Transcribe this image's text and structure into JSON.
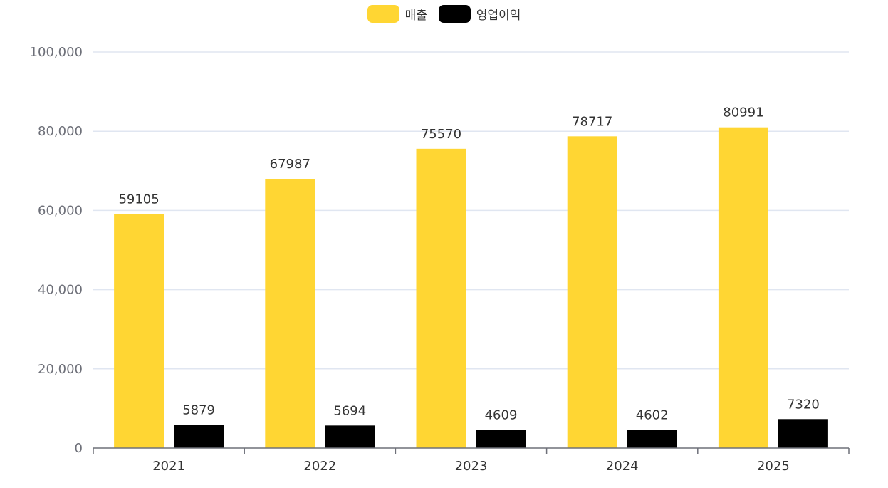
{
  "chart_data": {
    "type": "bar",
    "title": "",
    "xlabel": "",
    "ylabel": "",
    "categories": [
      "2021",
      "2022",
      "2023",
      "2024",
      "2025"
    ],
    "series": [
      {
        "name": "매출",
        "color": "#FFD633",
        "values": [
          59105,
          67987,
          75570,
          78717,
          80991
        ]
      },
      {
        "name": "영업이익",
        "color": "#000000",
        "values": [
          5879,
          5694,
          4609,
          4602,
          7320
        ]
      }
    ],
    "ylim": [
      0,
      100000
    ],
    "yticks": [
      "0",
      "20,000",
      "40,000",
      "60,000",
      "80,000",
      "100,000"
    ],
    "grid": true,
    "legend_position": "top-center",
    "data_labels": true
  },
  "colors": {
    "grid": "#E0E6F1",
    "axis": "#6E7079",
    "ytick_text": "#6E7079",
    "label_text": "#333333"
  }
}
